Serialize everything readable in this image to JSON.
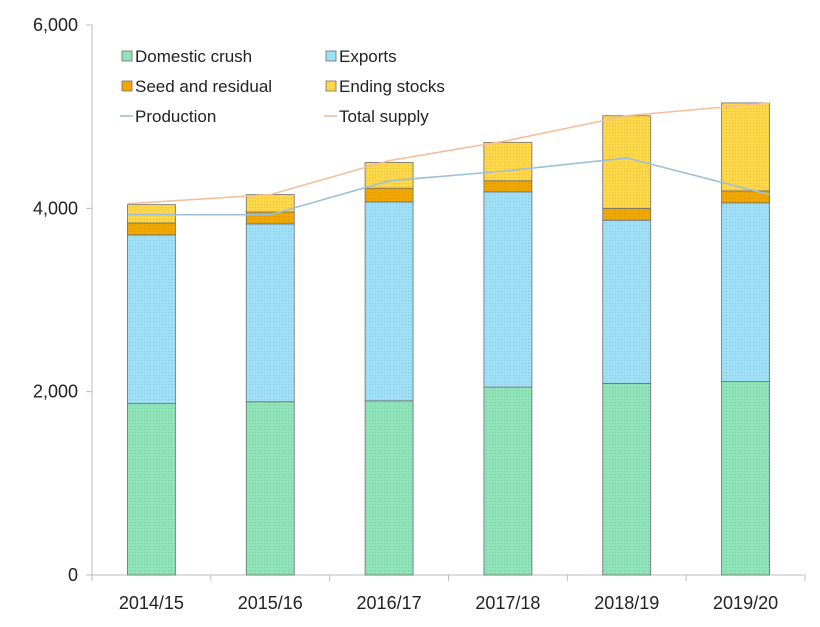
{
  "chart_data": {
    "type": "bar",
    "stacked": true,
    "categories": [
      "2014/15",
      "2015/16",
      "2016/17",
      "2017/18",
      "2018/19",
      "2019/20"
    ],
    "ylim": [
      0,
      6000
    ],
    "y_ticks": [
      {
        "value": 0,
        "label": "0"
      },
      {
        "value": 2000,
        "label": "2,000"
      },
      {
        "value": 4000,
        "label": "4,000"
      },
      {
        "value": 6000,
        "label": "6,000"
      }
    ],
    "grid": false,
    "legend_position": "top-left",
    "series": [
      {
        "name": "Domestic crush",
        "kind": "bar",
        "color": "#8fe3b8",
        "values": [
          1870,
          1890,
          1900,
          2050,
          2090,
          2110
        ]
      },
      {
        "name": "Exports",
        "kind": "bar",
        "color": "#9fe0f7",
        "values": [
          1840,
          1940,
          2170,
          2130,
          1780,
          1950
        ]
      },
      {
        "name": "Seed and residual",
        "kind": "bar",
        "color": "#f0a800",
        "values": [
          130,
          130,
          150,
          120,
          130,
          130
        ]
      },
      {
        "name": "Ending stocks",
        "kind": "bar",
        "color": "#ffd84a",
        "values": [
          200,
          190,
          280,
          420,
          1010,
          960
        ]
      },
      {
        "name": "Production",
        "kind": "line",
        "color": "#9dbfd9",
        "values": [
          3930,
          3930,
          4300,
          4410,
          4550,
          4150
        ]
      },
      {
        "name": "Total supply",
        "kind": "line",
        "color": "#f4bf98",
        "values": [
          4050,
          4150,
          4520,
          4740,
          5010,
          5150
        ]
      }
    ]
  }
}
